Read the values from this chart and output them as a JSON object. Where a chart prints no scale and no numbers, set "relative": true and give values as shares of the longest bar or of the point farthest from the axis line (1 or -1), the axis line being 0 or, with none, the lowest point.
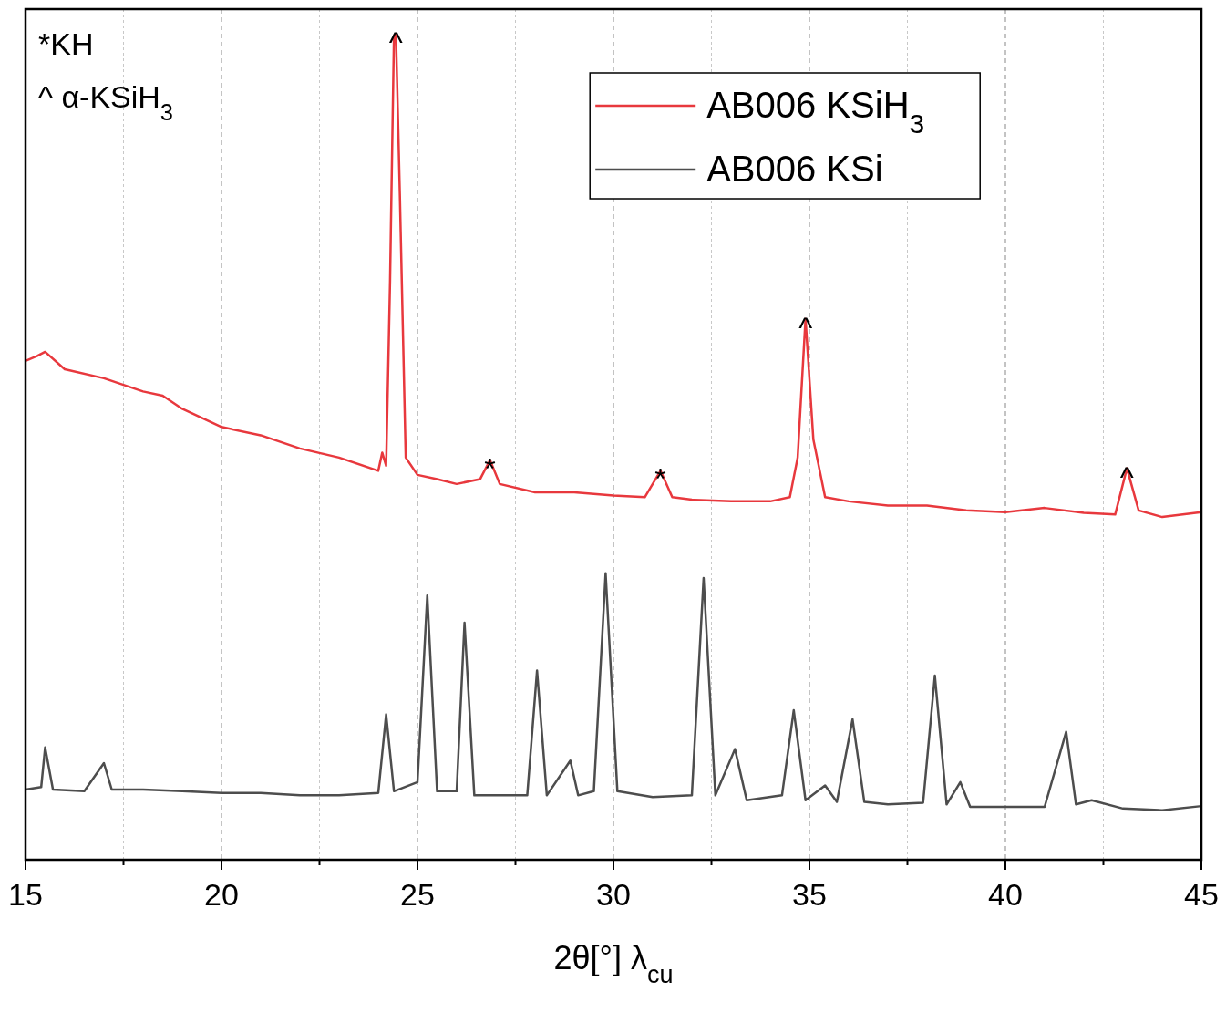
{
  "chart_data": {
    "type": "line",
    "relative": true,
    "xlabel": "2θ[°] λ$_{cu}$",
    "xlim": [
      15,
      45
    ],
    "xticks": [
      15,
      {
        "value": 17.5,
        "label": null
      },
      20,
      {
        "value": 22.5,
        "label": null
      },
      25,
      {
        "value": 27.5,
        "label": null
      },
      30,
      {
        "value": 32.5,
        "label": null
      },
      35,
      {
        "value": 37.5,
        "label": null
      },
      40,
      {
        "value": 42.5,
        "label": null
      },
      45
    ],
    "grid": "x",
    "legend": "top right",
    "tick_labels": "x",
    "line_style": "solid",
    "marker": "none",
    "annotations": [
      "*KH",
      "^ α-KSiH$_{3}$",
      {
        "text": "^",
        "x": 24.45,
        "y": 1.0
      },
      {
        "text": "*",
        "x": 26.85,
        "y": 0.484
      },
      {
        "text": "*",
        "x": 31.2,
        "y": 0.471
      },
      {
        "text": "^",
        "x": 34.9,
        "y": 0.655
      },
      {
        "text": "^",
        "x": 43.1,
        "y": 0.474
      }
    ],
    "series": [
      {
        "name": "AB006 KSiH$_{3}$",
        "color": "#e8383d",
        "x": [
          15,
          15.3,
          15.5,
          16,
          17,
          18,
          18.5,
          19,
          20,
          21,
          22,
          23,
          24,
          24.1,
          24.2,
          24.3,
          24.4,
          24.45,
          24.55,
          24.7,
          25,
          25.5,
          26,
          26.6,
          26.85,
          27.1,
          28,
          29,
          30,
          30.8,
          31.2,
          31.5,
          32,
          33,
          34,
          34.5,
          34.7,
          34.9,
          35.1,
          35.4,
          36,
          37,
          38,
          39,
          40,
          41,
          42,
          42.8,
          43.1,
          43.4,
          44,
          45
        ],
        "values": [
          0.604,
          0.61,
          0.615,
          0.594,
          0.583,
          0.567,
          0.562,
          0.546,
          0.524,
          0.514,
          0.498,
          0.487,
          0.471,
          0.493,
          0.477,
          0.7,
          0.998,
          1.0,
          0.806,
          0.487,
          0.466,
          0.461,
          0.455,
          0.461,
          0.484,
          0.455,
          0.445,
          0.445,
          0.441,
          0.439,
          0.471,
          0.439,
          0.436,
          0.434,
          0.434,
          0.439,
          0.487,
          0.655,
          0.509,
          0.439,
          0.434,
          0.429,
          0.429,
          0.423,
          0.421,
          0.426,
          0.42,
          0.418,
          0.474,
          0.423,
          0.415,
          0.421
        ]
      },
      {
        "name": "AB006 KSi",
        "color": "#4d4d4d",
        "x": [
          15,
          15.4,
          15.5,
          15.7,
          16.5,
          17,
          17.2,
          18,
          19,
          20,
          21,
          22,
          23,
          24,
          24.2,
          24.4,
          25,
          25.25,
          25.5,
          26,
          26.2,
          26.45,
          27,
          27.8,
          28.05,
          28.3,
          28.9,
          29.1,
          29.5,
          29.8,
          30.1,
          31,
          32,
          32.3,
          32.6,
          33.1,
          33.4,
          34.3,
          34.6,
          34.9,
          35.4,
          35.7,
          36.1,
          36.4,
          37,
          37.9,
          38.2,
          38.5,
          38.85,
          39.1,
          40,
          41,
          41.55,
          41.8,
          42.2,
          43,
          44,
          45
        ],
        "values": [
          0.085,
          0.088,
          0.136,
          0.085,
          0.083,
          0.117,
          0.085,
          0.085,
          0.083,
          0.081,
          0.081,
          0.078,
          0.078,
          0.081,
          0.176,
          0.083,
          0.094,
          0.32,
          0.083,
          0.083,
          0.287,
          0.078,
          0.078,
          0.078,
          0.229,
          0.078,
          0.12,
          0.078,
          0.083,
          0.347,
          0.083,
          0.076,
          0.078,
          0.341,
          0.078,
          0.134,
          0.072,
          0.078,
          0.181,
          0.072,
          0.09,
          0.07,
          0.17,
          0.07,
          0.067,
          0.069,
          0.223,
          0.067,
          0.094,
          0.064,
          0.064,
          0.064,
          0.155,
          0.067,
          0.072,
          0.062,
          0.06,
          0.065
        ]
      }
    ]
  }
}
